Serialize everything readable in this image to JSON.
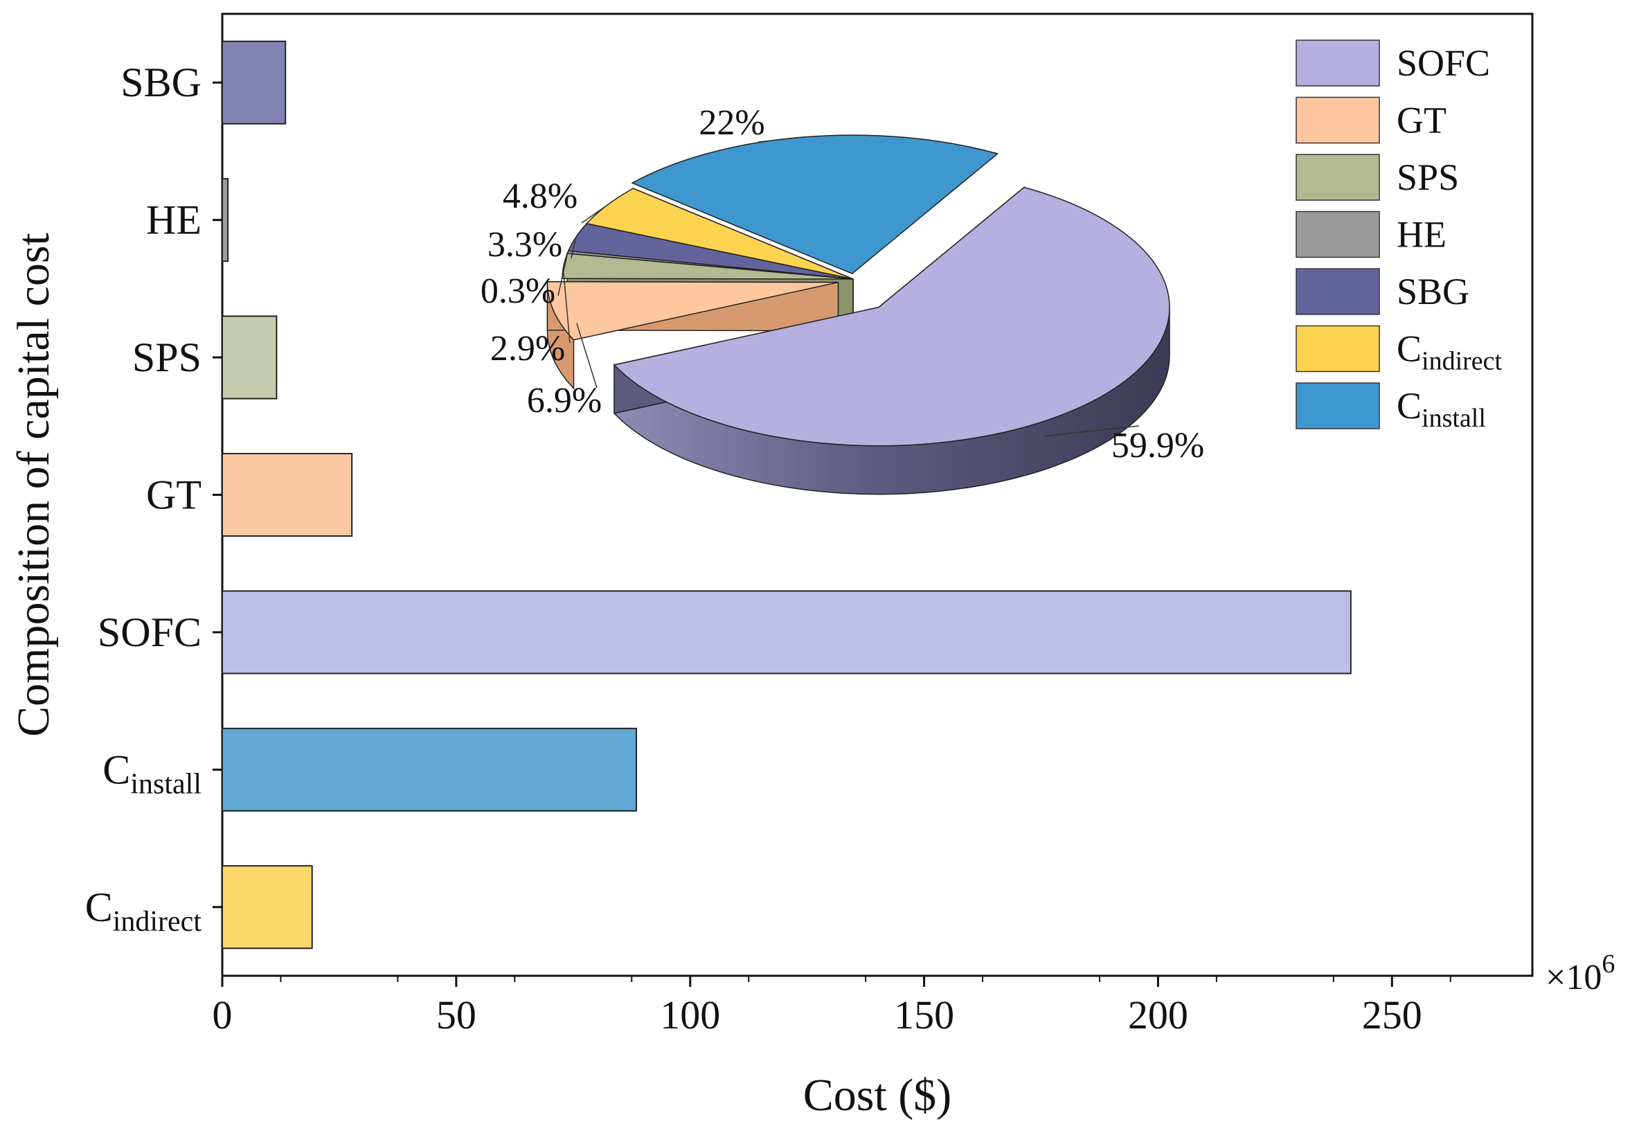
{
  "chart_data": [
    {
      "type": "bar",
      "orientation": "horizontal",
      "title": "",
      "xlabel": "Cost ($)",
      "ylabel": "Composition of capital cost",
      "x_multiplier": {
        "base": "×10",
        "exp": "6"
      },
      "xlim": [
        0,
        280
      ],
      "xticks": [
        0,
        50,
        100,
        150,
        200,
        250
      ],
      "grid": false,
      "categories": [
        {
          "key": "SBG",
          "main": "SBG",
          "sub": "",
          "value": 13.5,
          "color": "#8383b3"
        },
        {
          "key": "HE",
          "main": "HE",
          "sub": "",
          "value": 1.2,
          "color": "#9b9b9b"
        },
        {
          "key": "SPS",
          "main": "SPS",
          "sub": "",
          "value": 11.6,
          "color": "#c5ccad"
        },
        {
          "key": "GT",
          "main": "GT",
          "sub": "",
          "value": 27.7,
          "color": "#fcc9a3"
        },
        {
          "key": "SOFC",
          "main": "SOFC",
          "sub": "",
          "value": 241.2,
          "color": "#bdbde5"
        },
        {
          "key": "Cinstall",
          "main": "C",
          "sub": "install",
          "value": 88.5,
          "color": "#63a9d6"
        },
        {
          "key": "Cindirect",
          "main": "C",
          "sub": "indirect",
          "value": 19.2,
          "color": "#fcd76a"
        }
      ]
    },
    {
      "type": "pie",
      "style": "3d-exploded",
      "slices": [
        {
          "key": "SOFC",
          "value": 59.9,
          "label": "59.9%",
          "color": "#b5b0e0",
          "side_color": "#5c5a7e"
        },
        {
          "key": "GT",
          "value": 6.9,
          "label": "6.9%",
          "color": "#fdc7a0",
          "side_color": "#d79a70"
        },
        {
          "key": "SPS",
          "value": 2.9,
          "label": "2.9%",
          "color": "#b3ba91",
          "side_color": "#8d946c"
        },
        {
          "key": "HE",
          "value": 0.3,
          "label": "0.3%",
          "color": "#9a9a9a",
          "side_color": "#6f6f6f"
        },
        {
          "key": "SBG",
          "value": 3.3,
          "label": "3.3%",
          "color": "#63639c",
          "side_color": "#45456e"
        },
        {
          "key": "Cindirect",
          "value": 4.8,
          "label": "4.8%",
          "color": "#fbd34f",
          "side_color": "#c9a230"
        },
        {
          "key": "Cinstall",
          "value": 22,
          "label": "22%",
          "color": "#3f97cf",
          "side_color": "#2a6f9c"
        }
      ]
    }
  ],
  "legend": {
    "position": "top-right",
    "items": [
      {
        "key": "SOFC",
        "main": "SOFC",
        "sub": "",
        "color": "#b5b0e0"
      },
      {
        "key": "GT",
        "main": "GT",
        "sub": "",
        "color": "#fdc7a0"
      },
      {
        "key": "SPS",
        "main": "SPS",
        "sub": "",
        "color": "#b3ba91"
      },
      {
        "key": "HE",
        "main": "HE",
        "sub": "",
        "color": "#9a9a9a"
      },
      {
        "key": "SBG",
        "main": "SBG",
        "sub": "",
        "color": "#63639c"
      },
      {
        "key": "Cindirect",
        "main": "C",
        "sub": "indirect",
        "color": "#fbd34f"
      },
      {
        "key": "Cinstall",
        "main": "C",
        "sub": "install",
        "color": "#3f97cf"
      }
    ]
  }
}
